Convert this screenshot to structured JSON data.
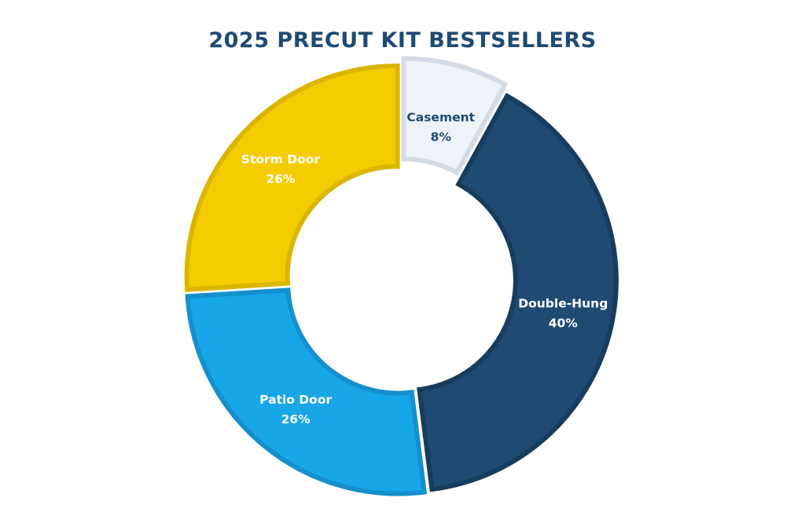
{
  "chart_data": {
    "type": "pie",
    "donut": true,
    "title": "2025 PRECUT KIT BESTSELLERS",
    "legend": "none",
    "slices": [
      {
        "label": "Casement",
        "value": 8,
        "display": "8%",
        "fill": "#eef3fa",
        "stroke": "#d3dbe6",
        "text_color": "#1f4b72"
      },
      {
        "label": "Double-Hung",
        "value": 40,
        "display": "40%",
        "fill": "#1f4b72",
        "stroke": "#173c5d",
        "text_color": "#ffffff"
      },
      {
        "label": "Patio Door",
        "value": 26,
        "display": "26%",
        "fill": "#17a6e8",
        "stroke": "#1590cc",
        "text_color": "#ffffff"
      },
      {
        "label": "Storm Door",
        "value": 26,
        "display": "26%",
        "fill": "#f4cc00",
        "stroke": "#dab600",
        "text_color": "#ffffff"
      }
    ]
  }
}
